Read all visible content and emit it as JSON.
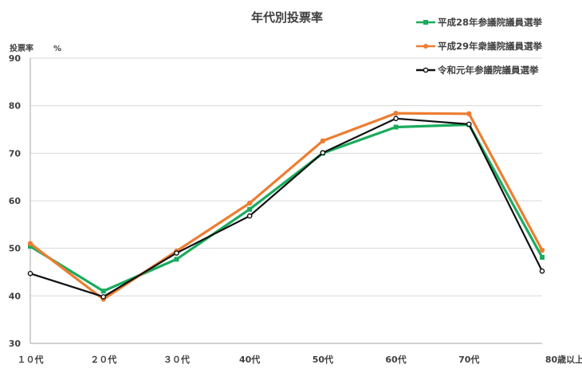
{
  "chart_data": {
    "type": "line",
    "title": "年代別投票率",
    "ylabel": "投票率",
    "yunit": "%",
    "categories": [
      "１０代",
      "２０代",
      "３０代",
      "40代",
      "50代",
      "60代",
      "70代",
      "80歳以上"
    ],
    "ylim": [
      30,
      90
    ],
    "yticks": [
      30,
      40,
      50,
      60,
      70,
      80,
      90
    ],
    "grid": true,
    "legend_position": "top-right",
    "series": [
      {
        "name": "平成28年参議院議員選挙",
        "color": "#1aab5e",
        "marker": "square",
        "values": [
          50.4,
          41.0,
          47.7,
          58.2,
          70.0,
          75.5,
          76.0,
          48.1
        ]
      },
      {
        "name": "平成29年衆議院議員選挙",
        "color": "#ed7d31",
        "marker": "circle",
        "values": [
          51.0,
          39.3,
          49.4,
          59.5,
          72.6,
          78.4,
          78.3,
          49.6
        ]
      },
      {
        "name": "令和元年参議院議員選挙",
        "color": "#111111",
        "marker": "circle-open",
        "values": [
          44.7,
          39.8,
          49.0,
          56.8,
          70.1,
          77.3,
          76.1,
          45.2
        ]
      }
    ]
  }
}
